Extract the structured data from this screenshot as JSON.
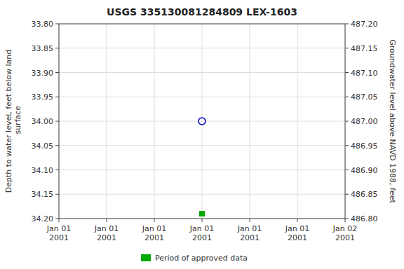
{
  "chart_data": {
    "type": "scatter",
    "title": "USGS 335130081284809 LEX-1603",
    "ylabel": "Depth to water level, feet below land\n surface",
    "y2label": "Groundwater level above NAVD 1988, feet",
    "categories": [
      "Jan 01\n2001",
      "Jan 01\n2001",
      "Jan 01\n2001",
      "Jan 01\n2001",
      "Jan 01\n2001",
      "Jan 01\n2001",
      "Jan 02\n2001"
    ],
    "series": [
      {
        "color": "#0000cc",
        "marker": "open-circle",
        "values": [
          null,
          null,
          null,
          34.0,
          null,
          null,
          null
        ]
      },
      {
        "name": "Period of approved data",
        "color": "#00aa00",
        "marker": "square",
        "values": [
          null,
          null,
          null,
          34.19,
          null,
          null,
          null
        ]
      }
    ],
    "ylim": [
      34.2,
      33.8
    ],
    "yticks": [
      {
        "value": 33.8,
        "label": "33.80"
      },
      {
        "value": 33.85,
        "label": "33.85"
      },
      {
        "value": 33.9,
        "label": "33.90"
      },
      {
        "value": 33.95,
        "label": "33.95"
      },
      {
        "value": 34.0,
        "label": "34.00"
      },
      {
        "value": 34.05,
        "label": "34.05"
      },
      {
        "value": 34.1,
        "label": "34.10"
      },
      {
        "value": 34.15,
        "label": "34.15"
      },
      {
        "value": 34.2,
        "label": "34.20"
      }
    ],
    "y2lim": [
      486.8,
      487.2
    ],
    "y2ticks": [
      {
        "value": 487.2,
        "label": "487.20"
      },
      {
        "value": 487.15,
        "label": "487.15"
      },
      {
        "value": 487.1,
        "label": "487.10"
      },
      {
        "value": 487.05,
        "label": "487.05"
      },
      {
        "value": 487.0,
        "label": "487.00"
      },
      {
        "value": 486.95,
        "label": "486.95"
      },
      {
        "value": 486.9,
        "label": "486.90"
      },
      {
        "value": 486.85,
        "label": "486.85"
      },
      {
        "value": 486.8,
        "label": "486.80"
      }
    ],
    "grid": true,
    "legend": "bottom"
  }
}
